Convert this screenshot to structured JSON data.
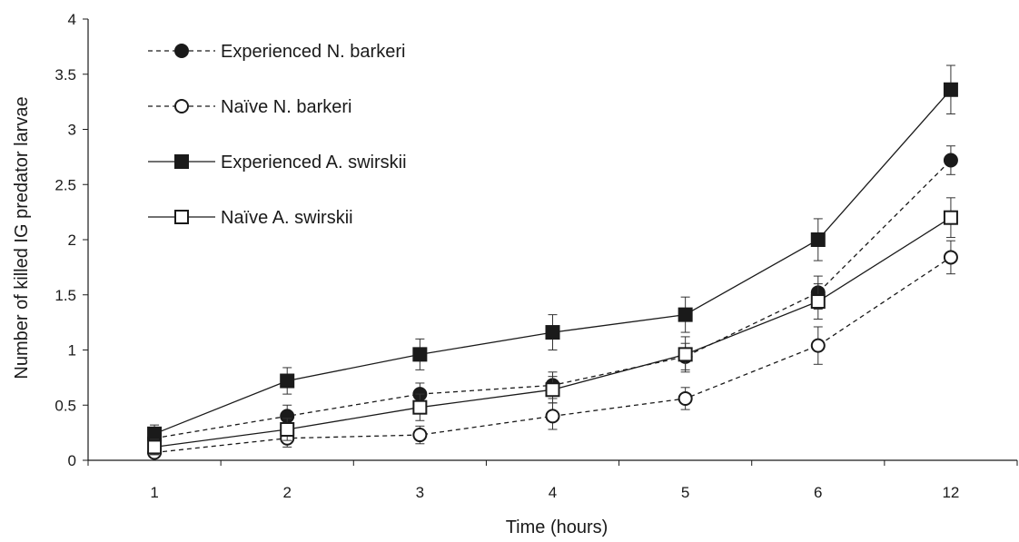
{
  "chart_data": {
    "type": "line",
    "title": "",
    "xlabel": "Time (hours)",
    "ylabel": "Number of killed IG predator larvae",
    "categories": [
      "1",
      "2",
      "3",
      "4",
      "5",
      "6",
      "12"
    ],
    "ylim": [
      0,
      4
    ],
    "yticks": [
      "0",
      "0.5",
      "1",
      "1.5",
      "2",
      "2.5",
      "3",
      "3.5",
      "4"
    ],
    "grid": false,
    "legend_position": "top-left",
    "series": [
      {
        "name": "Experienced N. barkeri",
        "line": "dashed",
        "marker": "filled-circle",
        "values": [
          0.2,
          0.4,
          0.6,
          0.68,
          0.94,
          1.52,
          2.72
        ],
        "errors": [
          0.08,
          0.1,
          0.1,
          0.12,
          0.12,
          0.15,
          0.13
        ]
      },
      {
        "name": "Naïve N. barkeri",
        "line": "dashed",
        "marker": "open-circle",
        "values": [
          0.07,
          0.2,
          0.23,
          0.4,
          0.56,
          1.04,
          1.84
        ],
        "errors": [
          0.05,
          0.08,
          0.08,
          0.12,
          0.1,
          0.17,
          0.15
        ]
      },
      {
        "name": "Experienced A. swirskii",
        "line": "solid",
        "marker": "filled-square",
        "values": [
          0.24,
          0.72,
          0.96,
          1.16,
          1.32,
          2.0,
          3.36
        ],
        "errors": [
          0.08,
          0.12,
          0.14,
          0.16,
          0.16,
          0.19,
          0.22
        ]
      },
      {
        "name": "Naïve A. swirskii",
        "line": "solid",
        "marker": "open-square",
        "values": [
          0.12,
          0.28,
          0.48,
          0.64,
          0.96,
          1.44,
          2.2
        ],
        "errors": [
          0.07,
          0.1,
          0.12,
          0.12,
          0.16,
          0.16,
          0.18
        ]
      }
    ]
  },
  "colors": {
    "ink": "#1a1a1a",
    "background": "#ffffff"
  }
}
